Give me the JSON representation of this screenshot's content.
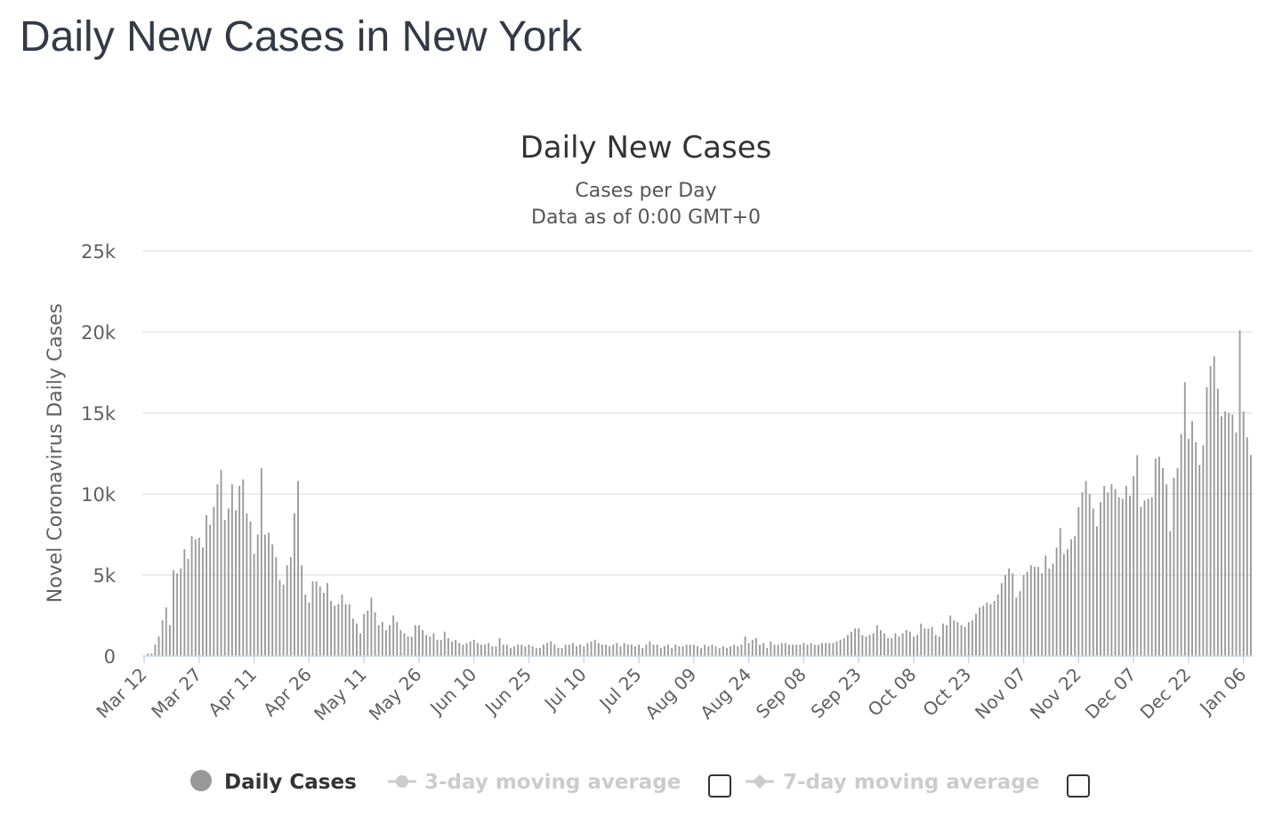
{
  "page": {
    "title": "Daily New Cases in New York"
  },
  "colors": {
    "bar": "#999999",
    "grid": "#e6e6e6",
    "axis_line": "#ccd6eb",
    "legend_inactive": "#cccccc"
  },
  "chart_data": {
    "type": "bar",
    "title": "Daily New Cases",
    "subtitle_lines": [
      "Cases per Day",
      "Data as of 0:00 GMT+0"
    ],
    "ylabel": "Novel Coronavirus Daily Cases",
    "xlabel": "",
    "ylim": [
      0,
      25000
    ],
    "yticks": [
      {
        "value": 0,
        "label": "0"
      },
      {
        "value": 5000,
        "label": "5k"
      },
      {
        "value": 10000,
        "label": "10k"
      },
      {
        "value": 15000,
        "label": "15k"
      },
      {
        "value": 20000,
        "label": "20k"
      },
      {
        "value": 25000,
        "label": "25k"
      }
    ],
    "x_start_date": "2020-03-12",
    "xtick_labels": [
      "Mar 12",
      "Mar 27",
      "Apr 11",
      "Apr 26",
      "May 11",
      "May 26",
      "Jun 10",
      "Jun 25",
      "Jul 10",
      "Jul 25",
      "Aug 09",
      "Aug 24",
      "Sep 08",
      "Sep 23",
      "Oct 08",
      "Oct 23",
      "Nov 07",
      "Nov 22",
      "Dec 07",
      "Dec 22",
      "Jan 06"
    ],
    "xtick_interval_days": 15,
    "grid": true,
    "legend": {
      "placement": "bottom",
      "items": [
        {
          "name": "Daily Cases",
          "active": true
        },
        {
          "name": "3-day moving average",
          "active": false
        },
        {
          "name": "7-day moving average",
          "active": false
        }
      ]
    },
    "series": [
      {
        "name": "Daily Cases",
        "values": [
          0,
          150,
          150,
          700,
          1200,
          2200,
          3000,
          1900,
          5300,
          5100,
          5400,
          6600,
          6000,
          7400,
          7200,
          7300,
          6700,
          8700,
          8100,
          9200,
          10600,
          11500,
          8400,
          9100,
          10600,
          9000,
          10500,
          10900,
          8800,
          8300,
          6300,
          7500,
          11600,
          7500,
          7600,
          6900,
          6100,
          4700,
          4400,
          5600,
          6100,
          8800,
          10800,
          5600,
          3800,
          3300,
          4600,
          4600,
          4300,
          3900,
          4500,
          3400,
          3100,
          3200,
          3800,
          3200,
          3200,
          2300,
          2000,
          1400,
          2600,
          2800,
          3600,
          2700,
          1900,
          2100,
          1600,
          1900,
          2500,
          2100,
          1600,
          1400,
          1200,
          1200,
          1900,
          1900,
          1600,
          1300,
          1200,
          1400,
          1000,
          1000,
          1500,
          1100,
          900,
          1000,
          800,
          700,
          800,
          900,
          1000,
          800,
          700,
          700,
          800,
          600,
          600,
          1100,
          700,
          700,
          500,
          600,
          700,
          700,
          600,
          700,
          600,
          500,
          500,
          700,
          800,
          900,
          700,
          500,
          500,
          700,
          700,
          800,
          600,
          700,
          600,
          800,
          900,
          1000,
          800,
          700,
          700,
          600,
          700,
          800,
          600,
          800,
          700,
          700,
          600,
          700,
          500,
          700,
          900,
          700,
          700,
          500,
          600,
          700,
          500,
          700,
          600,
          600,
          700,
          700,
          700,
          600,
          500,
          700,
          600,
          700,
          600,
          500,
          600,
          500,
          600,
          700,
          600,
          700,
          1200,
          800,
          1000,
          1100,
          700,
          800,
          500,
          900,
          700,
          700,
          800,
          800,
          700,
          700,
          700,
          700,
          800,
          700,
          800,
          700,
          700,
          800,
          800,
          800,
          800,
          900,
          1000,
          1100,
          1300,
          1500,
          1700,
          1700,
          1300,
          1200,
          1300,
          1400,
          1900,
          1600,
          1400,
          1100,
          1100,
          1400,
          1200,
          1400,
          1600,
          1500,
          1200,
          1300,
          2000,
          1700,
          1700,
          1800,
          1300,
          1200,
          2000,
          1900,
          2500,
          2200,
          2100,
          1900,
          1800,
          2100,
          2200,
          2600,
          3000,
          3100,
          3300,
          3200,
          3400,
          3800,
          4500,
          5000,
          5400,
          5100,
          3600,
          4000,
          5000,
          5200,
          5600,
          5500,
          5500,
          5100,
          6200,
          5400,
          5700,
          6700,
          7900,
          6300,
          6600,
          7200,
          7400,
          9200,
          10100,
          10800,
          10000,
          9100,
          8000,
          9500,
          10500,
          10100,
          10600,
          10300,
          9800,
          9700,
          10500,
          9900,
          11100,
          12400,
          9200,
          9600,
          9700,
          9800,
          12200,
          12300,
          11600,
          10600,
          7700,
          11000,
          11600,
          13700,
          16900,
          13400,
          14500,
          13200,
          11800,
          13000,
          16600,
          17900,
          18500,
          16500,
          14800,
          15100,
          15000,
          14900,
          13800,
          20100,
          15100,
          13500,
          12400
        ]
      }
    ]
  }
}
